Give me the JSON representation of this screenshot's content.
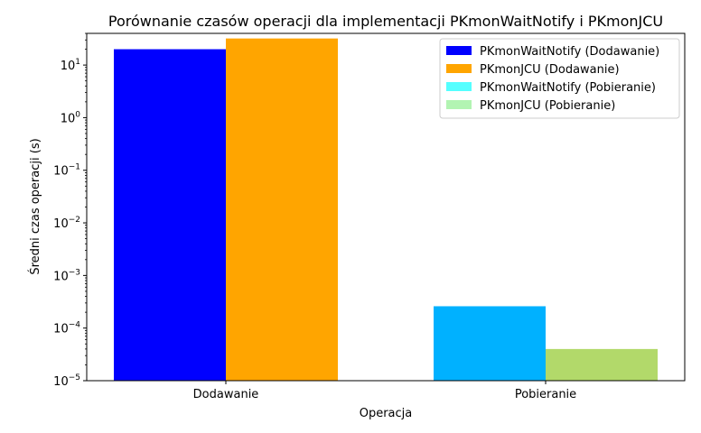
{
  "chart_data": {
    "type": "bar",
    "title": "Porównanie czasów operacji dla implementacji PKmonWaitNotify i PKmonJCU",
    "xlabel": "Operacja",
    "ylabel": "Średni czas operacji (s)",
    "yscale": "log",
    "ylim": [
      1e-05,
      40
    ],
    "categories": [
      "Dodawanie",
      "Pobieranie"
    ],
    "y_ticks": [
      {
        "base": "10",
        "exp": "−5",
        "value": 1e-05
      },
      {
        "base": "10",
        "exp": "−4",
        "value": 0.0001
      },
      {
        "base": "10",
        "exp": "−3",
        "value": 0.001
      },
      {
        "base": "10",
        "exp": "−2",
        "value": 0.01
      },
      {
        "base": "10",
        "exp": "−1",
        "value": 0.1
      },
      {
        "base": "10",
        "exp": "0",
        "value": 1
      },
      {
        "base": "10",
        "exp": "1",
        "value": 10
      }
    ],
    "bars": [
      {
        "category": "Dodawanie",
        "slot": 0,
        "value": 20.0,
        "color": "#0000ff"
      },
      {
        "category": "Dodawanie",
        "slot": 1,
        "value": 32.0,
        "color": "#ffa500"
      },
      {
        "category": "Pobieranie",
        "slot": 0,
        "value": 0.00026,
        "color": "#00b1ff"
      },
      {
        "category": "Pobieranie",
        "slot": 1,
        "value": 4e-05,
        "color": "#b2d96a"
      }
    ],
    "legend": {
      "placement": "top-right",
      "entries": [
        {
          "label": "PKmonWaitNotify (Dodawanie)",
          "color": "#0000ff"
        },
        {
          "label": "PKmonJCU (Dodawanie)",
          "color": "#ffa500"
        },
        {
          "label": "PKmonWaitNotify (Pobieranie)",
          "color": "#54ffff"
        },
        {
          "label": "PKmonJCU (Pobieranie)",
          "color": "#b2f4b2"
        }
      ]
    },
    "grid": false
  }
}
